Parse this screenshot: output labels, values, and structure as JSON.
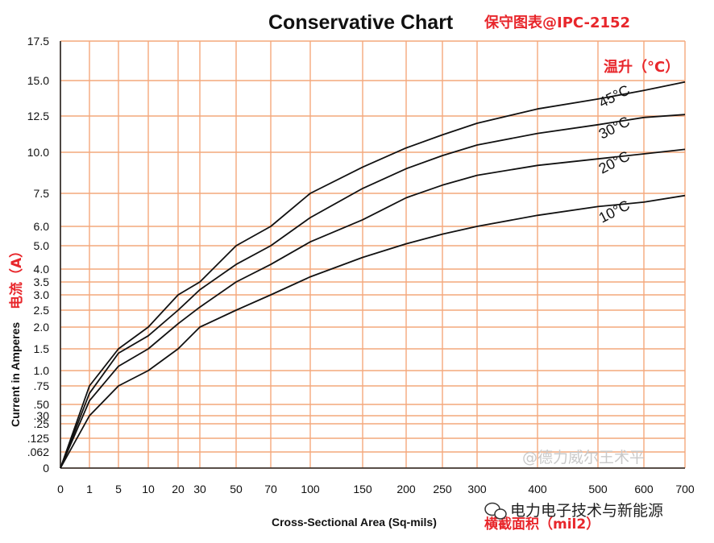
{
  "chart_data": {
    "type": "line",
    "title": "Conservative Chart",
    "title_cn": "保守图表@IPC-2152",
    "xlabel": "Cross-Sectional Area (Sq-mils)",
    "xlabel_cn": "横截面积（mil2）",
    "ylabel": "Current in Amperes",
    "ylabel_cn": "电流（A）",
    "legend_title": "温升（°C）",
    "grid": true,
    "grid_color": "#f4a87c",
    "curve_color": "#111111",
    "x_ticks": [
      "0",
      "1",
      "5",
      "10",
      "20",
      "30",
      "50",
      "70",
      "100",
      "150",
      "200",
      "250",
      "300",
      "400",
      "500",
      "600",
      "700"
    ],
    "y_ticks": [
      "0",
      ".062",
      ".125",
      ".25",
      ".30",
      ".50",
      ".75",
      "1.0",
      "1.5",
      "2.0",
      "2.5",
      "3.0",
      "3.5",
      "4.0",
      "5.0",
      "6.0",
      "7.5",
      "10.0",
      "12.5",
      "15.0",
      "17.5"
    ],
    "ylim": [
      0,
      17.5
    ],
    "xlim": [
      0,
      700
    ],
    "x": [
      0,
      1,
      5,
      10,
      20,
      30,
      50,
      70,
      100,
      150,
      200,
      250,
      300,
      400,
      500,
      600,
      700
    ],
    "series": [
      {
        "name": "45°C",
        "values": [
          0,
          0.75,
          1.5,
          2.0,
          3.0,
          3.5,
          5.0,
          6.0,
          7.5,
          9.1,
          10.3,
          11.2,
          12.0,
          13.0,
          13.7,
          14.3,
          14.9
        ]
      },
      {
        "name": "30°C",
        "values": [
          0,
          0.65,
          1.4,
          1.8,
          2.5,
          3.2,
          4.2,
          5.0,
          6.4,
          7.8,
          9.0,
          9.8,
          10.5,
          11.3,
          11.9,
          12.4,
          12.6
        ]
      },
      {
        "name": "20°C",
        "values": [
          0,
          0.55,
          1.1,
          1.5,
          2.1,
          2.6,
          3.5,
          4.2,
          5.2,
          6.3,
          7.3,
          8.0,
          8.6,
          9.2,
          9.6,
          9.9,
          10.2
        ]
      },
      {
        "name": "10°C",
        "values": [
          0,
          0.3,
          0.75,
          1.0,
          1.5,
          2.0,
          2.5,
          3.0,
          3.7,
          4.5,
          5.1,
          5.6,
          6.0,
          6.5,
          6.9,
          7.1,
          7.4
        ]
      }
    ]
  },
  "watermark": "@德力威尔王术平",
  "brand": "电力电子技术与新能源"
}
